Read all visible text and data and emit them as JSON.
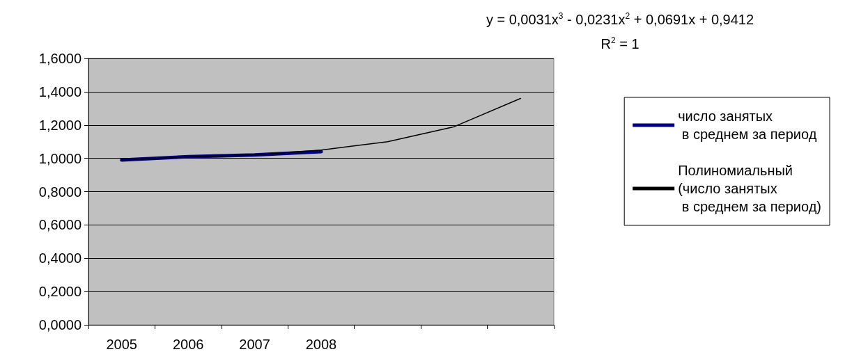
{
  "chart_data": {
    "type": "line",
    "categories": [
      "2005",
      "2006",
      "2007",
      "2008",
      null,
      null,
      null
    ],
    "series": [
      {
        "name": "число занятых\n в среднем за период",
        "color": "#000080",
        "values": [
          0.99,
          1.01,
          1.02,
          1.04,
          null,
          null,
          null
        ]
      },
      {
        "name": "Полиномиальный\n(число занятых\n в среднем за период)",
        "color": "#000000",
        "values": [
          0.99,
          1.01,
          1.02,
          1.05,
          1.1,
          1.19,
          1.36
        ]
      }
    ],
    "ylim": [
      0,
      1.6
    ],
    "yticks": [
      {
        "value": 0,
        "label": "0,0000"
      },
      {
        "value": 0.2,
        "label": "0,2000"
      },
      {
        "value": 0.4,
        "label": "0,4000"
      },
      {
        "value": 0.6,
        "label": "0,6000"
      },
      {
        "value": 0.8,
        "label": "0,8000"
      },
      {
        "value": 1,
        "label": "1,0000"
      },
      {
        "value": 1.2,
        "label": "1,2000"
      },
      {
        "value": 1.4,
        "label": "1,4000"
      },
      {
        "value": 1.6,
        "label": "1,6000"
      }
    ],
    "grid": "y",
    "legend": "right",
    "marker": "none",
    "line_style": "solid",
    "annotations": [
      "y = 0,0031x$^{3}$ - 0,0231x$^{2}$ + 0,0691x + 0,9412",
      "R$^{2}$ = 1"
    ]
  }
}
